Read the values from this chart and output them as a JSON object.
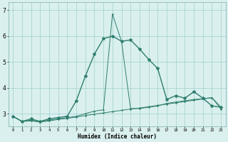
{
  "xlabel": "Humidex (Indice chaleur)",
  "x_values": [
    0,
    1,
    2,
    3,
    4,
    5,
    6,
    7,
    8,
    9,
    10,
    11,
    12,
    13,
    14,
    15,
    16,
    17,
    18,
    19,
    20,
    21,
    22,
    23
  ],
  "line1_y": [
    2.9,
    2.7,
    2.8,
    2.7,
    2.8,
    2.85,
    2.9,
    3.5,
    4.45,
    5.3,
    5.9,
    6.0,
    5.8,
    5.85,
    5.5,
    5.1,
    4.75,
    3.55,
    3.7,
    3.6,
    3.85,
    3.6,
    3.3,
    3.25
  ],
  "line2_y": [
    2.9,
    2.7,
    2.75,
    2.7,
    2.75,
    2.8,
    2.85,
    2.9,
    3.0,
    3.1,
    3.15,
    6.85,
    5.8,
    3.2,
    3.2,
    3.25,
    3.3,
    3.4,
    3.45,
    3.5,
    3.55,
    3.58,
    3.62,
    3.25
  ],
  "line3_y": [
    2.9,
    2.7,
    2.72,
    2.68,
    2.72,
    2.78,
    2.82,
    2.87,
    2.93,
    2.98,
    3.03,
    3.08,
    3.13,
    3.18,
    3.22,
    3.27,
    3.32,
    3.37,
    3.42,
    3.47,
    3.52,
    3.57,
    3.62,
    3.18
  ],
  "line_color": "#2e7d6e",
  "bg_color": "#daf0ee",
  "grid_color": "#9ecece",
  "ylim": [
    2.5,
    7.3
  ],
  "xlim": [
    -0.5,
    23.5
  ],
  "yticks": [
    3,
    4,
    5,
    6,
    7
  ]
}
